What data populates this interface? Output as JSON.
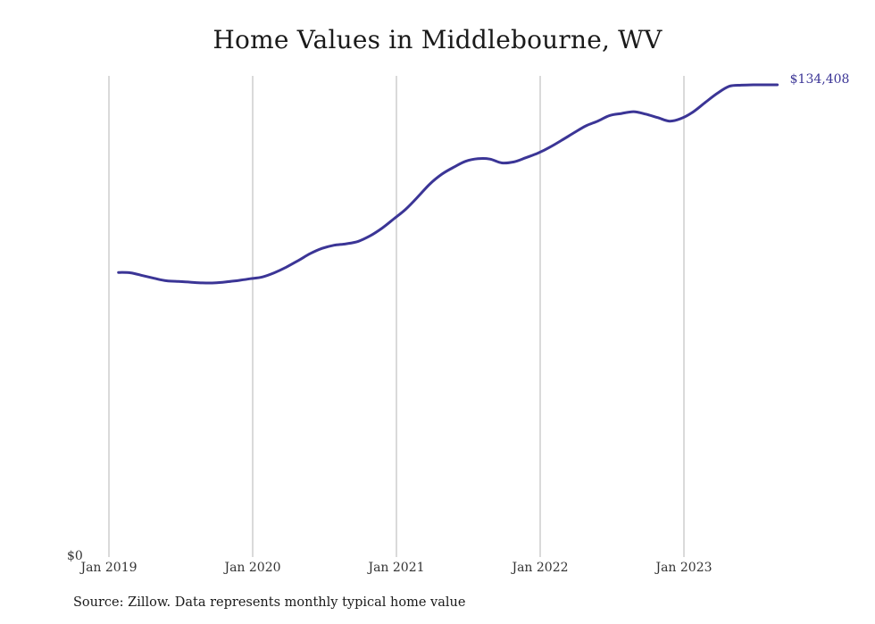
{
  "chart_data": {
    "type": "line",
    "title": "Home Values in Middlebourne, WV",
    "xlabel": "",
    "ylabel": "",
    "x_ticks": [
      "Jan 2019",
      "Jan 2020",
      "Jan 2021",
      "Jan 2022",
      "Jan 2023"
    ],
    "y_ticks": [
      "$0"
    ],
    "ylim": [
      0,
      134408
    ],
    "grid": "vertical",
    "line_color": "#3b3596",
    "end_label": "$134,408",
    "series": [
      {
        "x": [
          "2019-01",
          "2019-02",
          "2019-03",
          "2019-04",
          "2019-05",
          "2019-06",
          "2019-07",
          "2019-08",
          "2019-09",
          "2019-10",
          "2019-11",
          "2019-12",
          "2020-01",
          "2020-02",
          "2020-03",
          "2020-04",
          "2020-05",
          "2020-06",
          "2020-07",
          "2020-08",
          "2020-09",
          "2020-10",
          "2020-11",
          "2020-12",
          "2021-01",
          "2021-02",
          "2021-03",
          "2021-04",
          "2021-05",
          "2021-06",
          "2021-07",
          "2021-08",
          "2021-09",
          "2021-10",
          "2021-11",
          "2021-12",
          "2022-01",
          "2022-02",
          "2022-03",
          "2022-04",
          "2022-05",
          "2022-06",
          "2022-07",
          "2022-08",
          "2022-09",
          "2022-10",
          "2022-11",
          "2022-12",
          "2023-01",
          "2023-02",
          "2023-03",
          "2023-04",
          "2023-05",
          "2023-06",
          "2023-07",
          "2023-08"
        ],
        "values": [
          80600,
          80500,
          79700,
          78900,
          78200,
          78000,
          77800,
          77600,
          77600,
          77900,
          78300,
          78800,
          79300,
          80500,
          82100,
          84000,
          86000,
          87500,
          88400,
          88800,
          89500,
          91100,
          93300,
          96000,
          98800,
          102300,
          106000,
          108800,
          110800,
          112500,
          113200,
          113100,
          112000,
          112300,
          113500,
          114800,
          116500,
          118500,
          120600,
          122600,
          124000,
          125600,
          126200,
          126700,
          126000,
          125000,
          124000,
          124800,
          126700,
          129400,
          132000,
          134000,
          134300,
          134400,
          134408,
          134408
        ]
      }
    ]
  },
  "source_note": "Source: Zillow. Data represents monthly typical home value"
}
